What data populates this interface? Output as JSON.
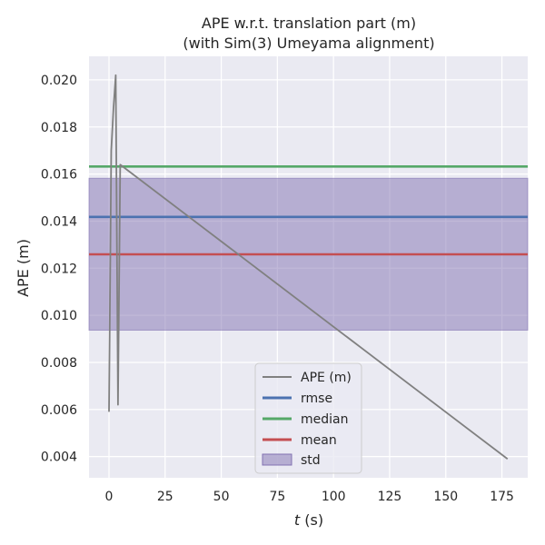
{
  "chart_data": {
    "type": "line",
    "title": "APE w.r.t. translation part (m)",
    "subtitle": "(with Sim(3) Umeyama alignment)",
    "xlabel_var": "t",
    "xlabel_unit": " (s)",
    "ylabel": "APE (m)",
    "xlim": [
      -8.9,
      186.5
    ],
    "ylim": [
      0.0031,
      0.021
    ],
    "xticks": [
      0,
      25,
      50,
      75,
      100,
      125,
      150,
      175
    ],
    "xtick_labels": [
      "0",
      "25",
      "50",
      "75",
      "100",
      "125",
      "150",
      "175"
    ],
    "yticks": [
      0.004,
      0.006,
      0.008,
      0.01,
      0.012,
      0.014,
      0.016,
      0.018,
      0.02
    ],
    "ytick_labels": [
      "0.004",
      "0.006",
      "0.008",
      "0.010",
      "0.012",
      "0.014",
      "0.016",
      "0.018",
      "0.020"
    ],
    "grid": true,
    "legend_placement": "lower center",
    "series": [
      {
        "name": "APE (m)",
        "color": "#808080",
        "x": [
          0.0,
          1.0,
          2.0,
          3.0,
          4.0,
          5.0,
          177.5
        ],
        "y": [
          0.0059,
          0.017,
          0.0188,
          0.0202,
          0.0062,
          0.0164,
          0.0039
        ]
      }
    ],
    "stats": {
      "rmse": {
        "name": "rmse",
        "value": 0.01418,
        "color": "#4c72b0"
      },
      "median": {
        "name": "median",
        "value": 0.01632,
        "color": "#55a868"
      },
      "mean": {
        "name": "mean",
        "value": 0.01259,
        "color": "#c44e52"
      },
      "std": {
        "name": "std",
        "lower": 0.00937,
        "upper": 0.01582,
        "color": "#8172b2"
      }
    },
    "legend": [
      "APE (m)",
      "rmse",
      "median",
      "mean",
      "std"
    ]
  }
}
